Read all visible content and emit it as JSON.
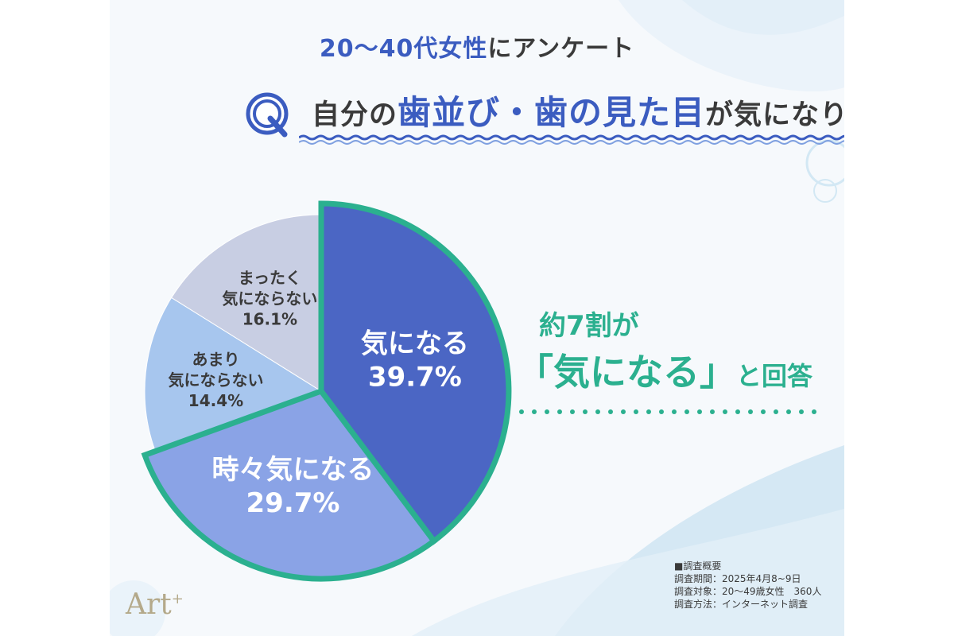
{
  "header": {
    "headline_blue": "20〜40代女性",
    "headline_rest": "にアンケート",
    "q_mark": "Q",
    "question_pre": "自分の",
    "question_hl": "歯並び・歯の見た目",
    "question_post": "が気になりますか？"
  },
  "callout": {
    "line1": "約7割が",
    "line2": "「気になる」",
    "line2_suffix": "と回答"
  },
  "survey": {
    "title": "■調査概要",
    "period": "調査期間：2025年4月8~9日",
    "target": "調査対象：20〜49歳女性　360人",
    "method": "調査方法：インターネット調査"
  },
  "logo": {
    "text": "Art",
    "sup": "+"
  },
  "colors": {
    "kininaru": "#4b66c4",
    "tokidoki": "#8aa3e6",
    "amari": "#a7c6ee",
    "mattaku": "#c8cee3",
    "highlight_border": "#2bb08f",
    "accent_text": "#2bb08f",
    "title_blue": "#3b5cc0"
  },
  "chart_data": {
    "type": "pie",
    "start": "12 o'clock, clockwise",
    "series": [
      {
        "label_lines": [
          "気になる"
        ],
        "value": 39.7,
        "display": "39.7%",
        "color": "#4b66c4",
        "highlight": true,
        "label_color": "#ffffff"
      },
      {
        "label_lines": [
          "時々気になる"
        ],
        "value": 29.7,
        "display": "29.7%",
        "color": "#8aa3e6",
        "highlight": true,
        "label_color": "#ffffff"
      },
      {
        "label_lines": [
          "あまり",
          "気にならない"
        ],
        "value": 14.4,
        "display": "14.4%",
        "color": "#a7c6ee",
        "highlight": false,
        "label_color": "#3a3a3a"
      },
      {
        "label_lines": [
          "まったく",
          "気にならない"
        ],
        "value": 16.1,
        "display": "16.1%",
        "color": "#c8cee3",
        "highlight": false,
        "label_color": "#3a3a3a"
      }
    ]
  }
}
